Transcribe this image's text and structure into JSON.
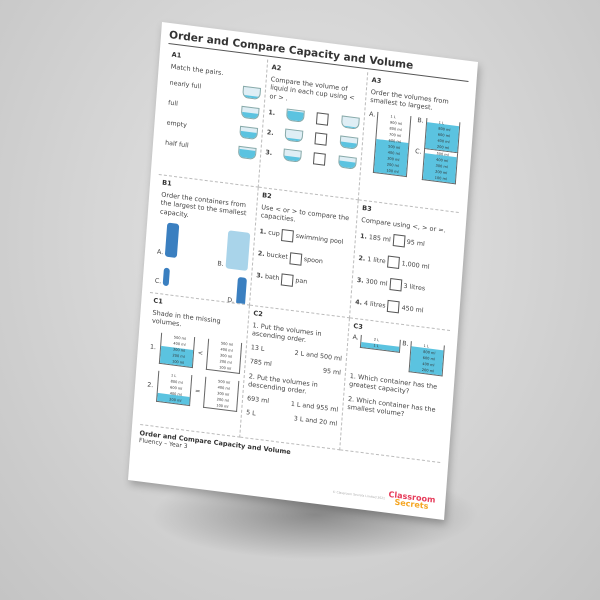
{
  "title": "Order and Compare Capacity and Volume",
  "a1": {
    "label": "A1",
    "question": "Match the pairs.",
    "items": [
      "nearly full",
      "full",
      "empty",
      "half full"
    ],
    "cups": [
      20,
      55,
      60,
      85
    ]
  },
  "a2": {
    "label": "A2",
    "question": "Compare the volume of liquid in each cup using < or > .",
    "rows": [
      {
        "n": "1.",
        "l": 90,
        "r": 10
      },
      {
        "n": "2.",
        "l": 20,
        "r": 50
      },
      {
        "n": "3.",
        "l": 40,
        "r": 60
      }
    ]
  },
  "a3": {
    "label": "A3",
    "question": "Order the volumes from smallest to largest.",
    "a": "A.",
    "b": "B.",
    "c": "C.",
    "a_marks": [
      "1 L",
      "900 ml",
      "800 ml",
      "700 ml",
      "600 ml",
      "500 ml",
      "400 ml",
      "300 ml",
      "200 ml",
      "100 ml"
    ],
    "b_marks": [
      "1 L",
      "800 ml",
      "600 ml",
      "400 ml",
      "200 ml"
    ],
    "c_marks": [
      "500 ml",
      "400 ml",
      "300 ml",
      "200 ml",
      "100 ml"
    ]
  },
  "b1": {
    "label": "B1",
    "question": "Order the containers from the largest to the smallest capacity.",
    "a": "A.",
    "b": "B.",
    "c": "C.",
    "d": "D."
  },
  "b2": {
    "label": "B2",
    "question": "Use < or > to compare the capacities.",
    "rows": [
      {
        "n": "1.",
        "l": "cup",
        "r": "swimming pool"
      },
      {
        "n": "2.",
        "l": "bucket",
        "r": "spoon"
      },
      {
        "n": "3.",
        "l": "bath",
        "r": "pan"
      }
    ]
  },
  "b3": {
    "label": "B3",
    "question": "Compare using <, > or =.",
    "rows": [
      {
        "n": "1.",
        "l": "185 ml",
        "r": "95 ml"
      },
      {
        "n": "2.",
        "l": "1 litre",
        "r": "1,000 ml"
      },
      {
        "n": "3.",
        "l": "300 ml",
        "r": "3 litres"
      },
      {
        "n": "4.",
        "l": "4 litres",
        "r": "450 ml"
      }
    ]
  },
  "c1": {
    "label": "C1",
    "question": "Shade in the missing volumes.",
    "lt": "<",
    "eq": "=",
    "m1": [
      "500 ml",
      "400 ml",
      "300 ml",
      "200 ml",
      "100 ml"
    ],
    "m2": [
      "1 L",
      "800 ml",
      "600 ml",
      "400 ml",
      "200 ml"
    ]
  },
  "c2": {
    "label": "C2",
    "q1": "1. Put the volumes in ascending order.",
    "v1": [
      "13 L",
      "2 L and 500 ml",
      "785 ml",
      "95 ml"
    ],
    "q2": "2. Put the volumes in descending order.",
    "v2": [
      "693 ml",
      "1 L and 955 ml",
      "5 L",
      "3 L and 20 ml"
    ]
  },
  "c3": {
    "label": "C3",
    "a": "A.",
    "b": "B.",
    "a_marks": [
      "2 L",
      "1 L"
    ],
    "b_marks": [
      "1 L",
      "800 ml",
      "600 ml",
      "400 ml",
      "200 ml"
    ],
    "q1": "1. Which container has the greatest capacity?",
    "q2": "2. Which container has the smallest volume?"
  },
  "footer": {
    "title": "Order and Compare Capacity and Volume",
    "subtitle": "Fluency – Year 3",
    "copyright": "© Classroom Secrets Limited 2021",
    "logo_top": "Classroom",
    "logo_bottom": "Secrets"
  }
}
